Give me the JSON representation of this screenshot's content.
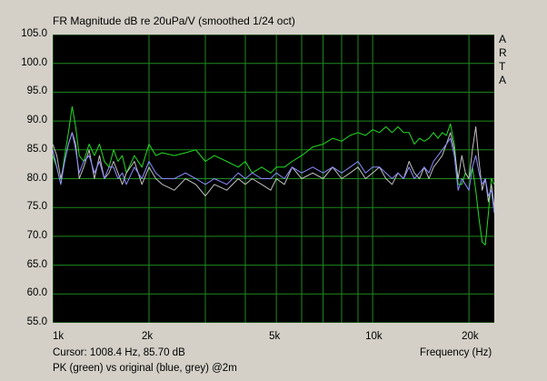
{
  "chart_data": {
    "type": "line",
    "title": "FR Magnitude dB re 20uPa/V (smoothed 1/24 oct)",
    "xlabel": "Frequency (Hz)",
    "ylabel": "",
    "xscale": "log",
    "xlim": [
      1000,
      24000
    ],
    "ylim": [
      55,
      105
    ],
    "yticks": [
      "105.0",
      "100.0",
      "95.0",
      "90.0",
      "85.0",
      "80.0",
      "75.0",
      "70.0",
      "65.0",
      "60.0",
      "55.0"
    ],
    "xticks": [
      "1k",
      "2k",
      "5k",
      "10k",
      "20k"
    ],
    "grid": true,
    "background": "#000000",
    "grid_color": "#1e8a1e",
    "watermark": [
      "A",
      "R",
      "T",
      "A"
    ],
    "cursor_text": "Cursor: 1008.4 Hz, 85.70 dB",
    "caption": "PK (green) vs original (blue, grey) @2m",
    "series": [
      {
        "color": "#22dd22",
        "points": [
          [
            1000,
            84
          ],
          [
            1030,
            82
          ],
          [
            1060,
            79
          ],
          [
            1090,
            84
          ],
          [
            1120,
            88
          ],
          [
            1150,
            92.5
          ],
          [
            1180,
            89
          ],
          [
            1210,
            84
          ],
          [
            1250,
            83
          ],
          [
            1300,
            86
          ],
          [
            1350,
            84
          ],
          [
            1400,
            86
          ],
          [
            1450,
            83
          ],
          [
            1500,
            82
          ],
          [
            1550,
            85
          ],
          [
            1600,
            83
          ],
          [
            1650,
            84
          ],
          [
            1700,
            81
          ],
          [
            1800,
            84
          ],
          [
            1900,
            82
          ],
          [
            2000,
            86
          ],
          [
            2100,
            84
          ],
          [
            2200,
            84.5
          ],
          [
            2400,
            84
          ],
          [
            2600,
            84.5
          ],
          [
            2800,
            85
          ],
          [
            3000,
            83
          ],
          [
            3200,
            84
          ],
          [
            3500,
            83
          ],
          [
            3800,
            82
          ],
          [
            4000,
            83
          ],
          [
            4200,
            81
          ],
          [
            4500,
            82
          ],
          [
            4800,
            81
          ],
          [
            5000,
            82
          ],
          [
            5300,
            82
          ],
          [
            5600,
            83
          ],
          [
            6000,
            84
          ],
          [
            6500,
            85.5
          ],
          [
            7000,
            86
          ],
          [
            7500,
            87
          ],
          [
            8000,
            86.5
          ],
          [
            8500,
            87.5
          ],
          [
            9000,
            88
          ],
          [
            9500,
            87.5
          ],
          [
            10000,
            88.5
          ],
          [
            10500,
            88
          ],
          [
            11000,
            89
          ],
          [
            11500,
            88
          ],
          [
            12000,
            89
          ],
          [
            12500,
            88
          ],
          [
            13000,
            88
          ],
          [
            13500,
            86
          ],
          [
            14000,
            87
          ],
          [
            14500,
            86.5
          ],
          [
            15000,
            87
          ],
          [
            15500,
            88
          ],
          [
            16000,
            87
          ],
          [
            16500,
            88
          ],
          [
            17000,
            87.5
          ],
          [
            17500,
            89.5
          ],
          [
            18000,
            86
          ],
          [
            18500,
            79
          ],
          [
            19000,
            79
          ],
          [
            19500,
            81
          ],
          [
            20000,
            80
          ],
          [
            20500,
            82
          ],
          [
            21000,
            78
          ],
          [
            21500,
            73
          ],
          [
            22000,
            69
          ],
          [
            22500,
            68.5
          ],
          [
            23000,
            74
          ],
          [
            23500,
            80
          ],
          [
            24000,
            79
          ]
        ]
      },
      {
        "color": "#c0c0c0",
        "points": [
          [
            1000,
            86
          ],
          [
            1030,
            84
          ],
          [
            1060,
            80
          ],
          [
            1090,
            83
          ],
          [
            1120,
            86
          ],
          [
            1150,
            88
          ],
          [
            1180,
            86
          ],
          [
            1210,
            80
          ],
          [
            1250,
            82
          ],
          [
            1300,
            85
          ],
          [
            1350,
            80
          ],
          [
            1400,
            84
          ],
          [
            1450,
            80
          ],
          [
            1500,
            81
          ],
          [
            1550,
            83
          ],
          [
            1600,
            81
          ],
          [
            1650,
            79
          ],
          [
            1700,
            81
          ],
          [
            1800,
            83
          ],
          [
            1900,
            79
          ],
          [
            2000,
            82
          ],
          [
            2100,
            80
          ],
          [
            2200,
            79
          ],
          [
            2400,
            78
          ],
          [
            2600,
            80
          ],
          [
            2800,
            79
          ],
          [
            3000,
            77
          ],
          [
            3200,
            79
          ],
          [
            3500,
            78
          ],
          [
            3800,
            80
          ],
          [
            4000,
            79
          ],
          [
            4200,
            80
          ],
          [
            4500,
            79
          ],
          [
            4800,
            78
          ],
          [
            5000,
            80
          ],
          [
            5300,
            79
          ],
          [
            5600,
            82
          ],
          [
            6000,
            80
          ],
          [
            6500,
            81
          ],
          [
            7000,
            80
          ],
          [
            7500,
            82
          ],
          [
            8000,
            80
          ],
          [
            8500,
            81
          ],
          [
            9000,
            82
          ],
          [
            9500,
            80
          ],
          [
            10000,
            81
          ],
          [
            10500,
            82
          ],
          [
            11000,
            80
          ],
          [
            11500,
            79
          ],
          [
            12000,
            81
          ],
          [
            12500,
            80
          ],
          [
            13000,
            83
          ],
          [
            13500,
            81
          ],
          [
            14000,
            80
          ],
          [
            14500,
            82
          ],
          [
            15000,
            80
          ],
          [
            15500,
            82
          ],
          [
            16000,
            83
          ],
          [
            16500,
            84
          ],
          [
            17000,
            86
          ],
          [
            17500,
            88
          ],
          [
            18000,
            85
          ],
          [
            18500,
            80
          ],
          [
            19000,
            84
          ],
          [
            19500,
            81
          ],
          [
            20000,
            80
          ],
          [
            20500,
            85
          ],
          [
            21000,
            89
          ],
          [
            21500,
            83
          ],
          [
            22000,
            78
          ],
          [
            22500,
            80
          ],
          [
            23000,
            76
          ],
          [
            23500,
            79
          ],
          [
            24000,
            75
          ]
        ]
      },
      {
        "color": "#8c8cff",
        "points": [
          [
            1000,
            85
          ],
          [
            1030,
            82
          ],
          [
            1060,
            79
          ],
          [
            1090,
            83
          ],
          [
            1120,
            86
          ],
          [
            1150,
            88
          ],
          [
            1180,
            85
          ],
          [
            1210,
            81
          ],
          [
            1250,
            83
          ],
          [
            1300,
            84
          ],
          [
            1350,
            81
          ],
          [
            1400,
            83
          ],
          [
            1450,
            80
          ],
          [
            1500,
            82
          ],
          [
            1550,
            82
          ],
          [
            1600,
            80
          ],
          [
            1650,
            81
          ],
          [
            1700,
            79
          ],
          [
            1800,
            82
          ],
          [
            1900,
            80
          ],
          [
            2000,
            83
          ],
          [
            2100,
            81
          ],
          [
            2200,
            80
          ],
          [
            2400,
            80
          ],
          [
            2600,
            81
          ],
          [
            2800,
            80
          ],
          [
            3000,
            79
          ],
          [
            3200,
            80
          ],
          [
            3500,
            79
          ],
          [
            3800,
            81
          ],
          [
            4000,
            80
          ],
          [
            4200,
            81
          ],
          [
            4500,
            80
          ],
          [
            4800,
            80
          ],
          [
            5000,
            81
          ],
          [
            5300,
            80
          ],
          [
            5600,
            82
          ],
          [
            6000,
            81
          ],
          [
            6500,
            82
          ],
          [
            7000,
            81
          ],
          [
            7500,
            82
          ],
          [
            8000,
            81
          ],
          [
            8500,
            82
          ],
          [
            9000,
            83
          ],
          [
            9500,
            81
          ],
          [
            10000,
            82
          ],
          [
            10500,
            82
          ],
          [
            11000,
            81
          ],
          [
            11500,
            80
          ],
          [
            12000,
            81
          ],
          [
            12500,
            80
          ],
          [
            13000,
            82
          ],
          [
            13500,
            80
          ],
          [
            14000,
            81
          ],
          [
            14500,
            82
          ],
          [
            15000,
            81
          ],
          [
            15500,
            83
          ],
          [
            16000,
            84
          ],
          [
            16500,
            85
          ],
          [
            17000,
            86
          ],
          [
            17500,
            87
          ],
          [
            18000,
            84
          ],
          [
            18500,
            78
          ],
          [
            19000,
            80
          ],
          [
            19500,
            79
          ],
          [
            20000,
            78
          ],
          [
            20500,
            82
          ],
          [
            21000,
            84
          ],
          [
            21500,
            81
          ],
          [
            22000,
            79
          ],
          [
            22500,
            80
          ],
          [
            23000,
            77
          ],
          [
            23500,
            78
          ],
          [
            24000,
            74
          ]
        ]
      }
    ]
  }
}
